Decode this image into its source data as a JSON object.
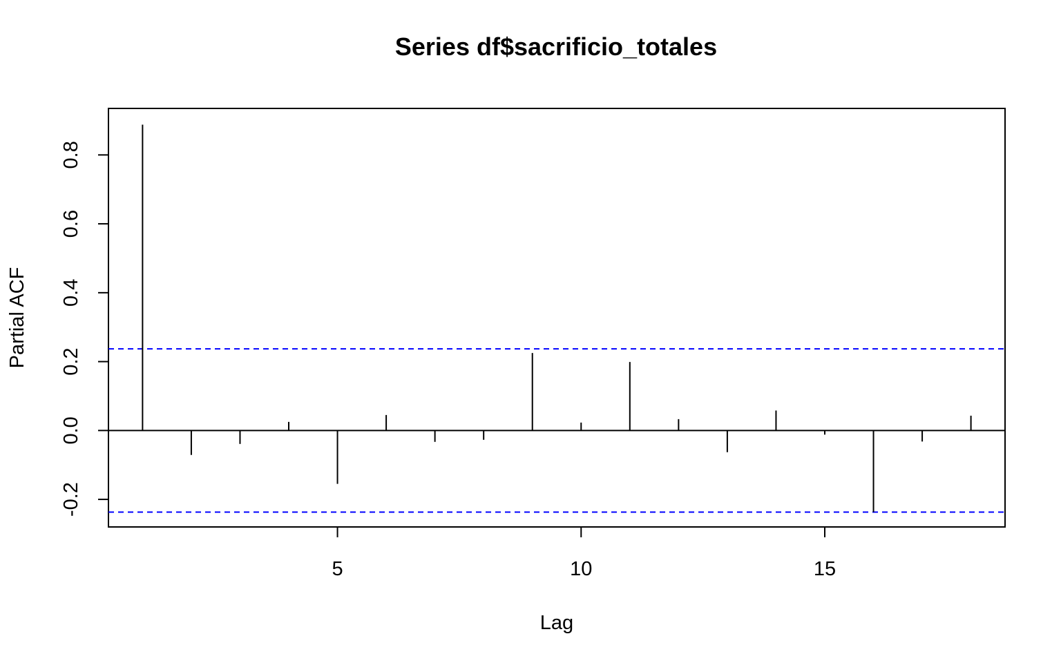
{
  "chart_data": {
    "type": "bar",
    "title": "Series  df$sacrificio_totales",
    "xlabel": "Lag",
    "ylabel": "Partial ACF",
    "xlim": [
      0.3,
      18.7
    ],
    "ylim": [
      -0.28,
      0.935
    ],
    "xticks": [
      5,
      10,
      15
    ],
    "yticks": [
      -0.2,
      0.0,
      0.2,
      0.4,
      0.6,
      0.8
    ],
    "ytick_labels": [
      "-0.2",
      "0.0",
      "0.2",
      "0.4",
      "0.6",
      "0.8"
    ],
    "lags": [
      1,
      2,
      3,
      4,
      5,
      6,
      7,
      8,
      9,
      10,
      11,
      12,
      13,
      14,
      15,
      16,
      17,
      18
    ],
    "values": [
      0.888,
      -0.071,
      -0.039,
      0.025,
      -0.155,
      0.045,
      -0.033,
      -0.027,
      0.225,
      0.023,
      0.199,
      0.033,
      -0.063,
      0.058,
      -0.012,
      -0.237,
      -0.032,
      0.043
    ],
    "confidence_limits": [
      -0.237,
      0.237
    ],
    "grid": false,
    "colors": {
      "bars": "#000000",
      "confidence_lines": "#0000ff",
      "zero_line": "#000000",
      "frame": "#000000"
    }
  }
}
